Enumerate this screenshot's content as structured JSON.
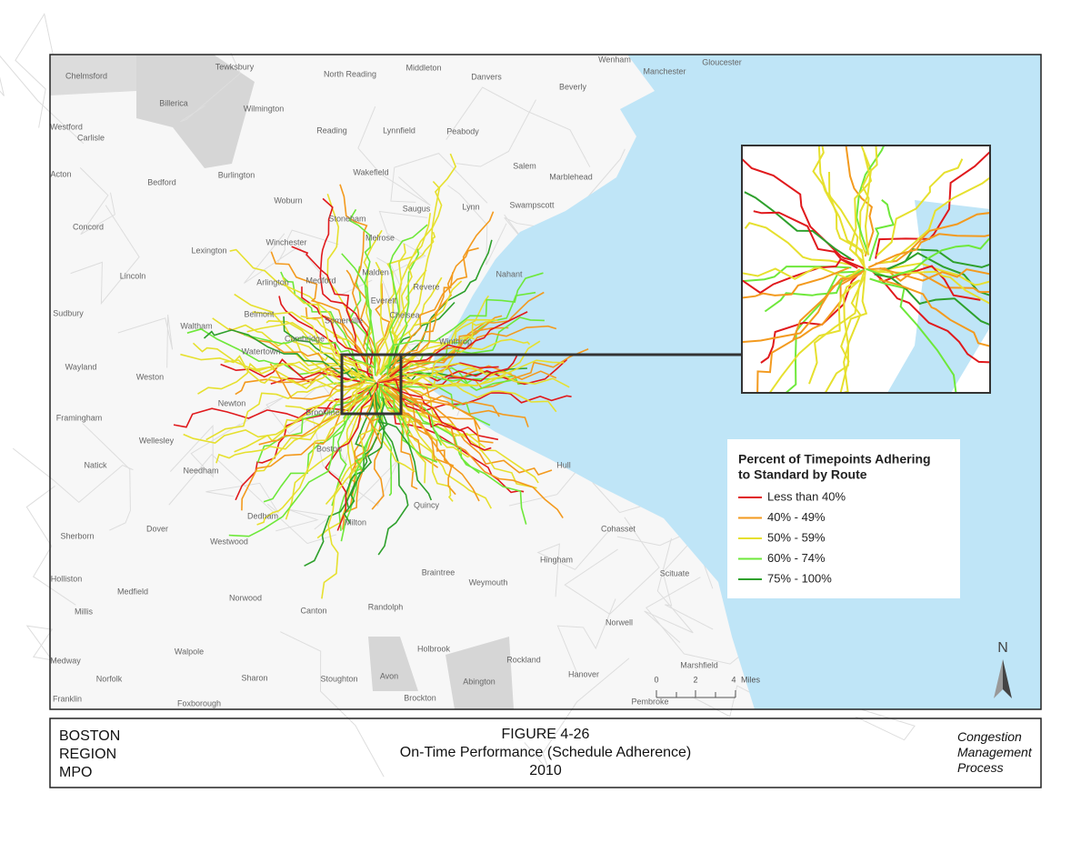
{
  "map": {
    "towns": [
      "Chelmsford",
      "Tewksbury",
      "North Reading",
      "Middleton",
      "Danvers",
      "Wenham",
      "Manchester",
      "Gloucester",
      "Beverly",
      "Billerica",
      "Wilmington",
      "Westford",
      "Carlisle",
      "Reading",
      "Lynnfield",
      "Peabody",
      "Salem",
      "Marblehead",
      "Acton",
      "Burlington",
      "Bedford",
      "Woburn",
      "Wakefield",
      "Stoneham",
      "Saugus",
      "Lynn",
      "Swampscott",
      "Concord",
      "Winchester",
      "Melrose",
      "Lexington",
      "Nahant",
      "Lincoln",
      "Arlington",
      "Medford",
      "Malden",
      "Revere",
      "Everett",
      "Sudbury",
      "Belmont",
      "Somerville",
      "Chelsea",
      "Waltham",
      "Cambridge",
      "Winthrop",
      "Watertown",
      "Wayland",
      "Weston",
      "Newton",
      "Framingham",
      "Brookline",
      "Wellesley",
      "Boston",
      "Hull",
      "Natick",
      "Needham",
      "Quincy",
      "Dedham",
      "Milton",
      "Dover",
      "Cohasset",
      "Sherborn",
      "Westwood",
      "Hingham",
      "Scituate",
      "Holliston",
      "Braintree",
      "Weymouth",
      "Medfield",
      "Norwood",
      "Canton",
      "Randolph",
      "Millis",
      "Norwell",
      "Holbrook",
      "Walpole",
      "Rockland",
      "Medway",
      "Marshfield",
      "Hanover",
      "Sharon",
      "Norfolk",
      "Stoughton",
      "Avon",
      "Abington",
      "Franklin",
      "Foxborough",
      "Brockton",
      "Pembroke"
    ],
    "legend": {
      "title_lines": [
        "Percent of Timepoints Adhering",
        "to Standard by Route"
      ],
      "items": [
        {
          "label": "Less than 40%",
          "color": "#e0191c"
        },
        {
          "label": "40% - 49%",
          "color": "#f39a1e"
        },
        {
          "label": "50% - 59%",
          "color": "#e6e02e"
        },
        {
          "label": "60% - 74%",
          "color": "#6ee83a"
        },
        {
          "label": "75% - 100%",
          "color": "#2ea02c"
        }
      ]
    },
    "scale": {
      "ticks": [
        "0",
        "2",
        "4"
      ],
      "unit": "Miles"
    },
    "north": "N"
  },
  "footer": {
    "left": [
      "BOSTON",
      "REGION",
      "MPO"
    ],
    "center": [
      "FIGURE 4-26",
      "On-Time Performance (Schedule Adherence)",
      "2010"
    ],
    "right": [
      "Congestion",
      "Management",
      "Process"
    ]
  }
}
